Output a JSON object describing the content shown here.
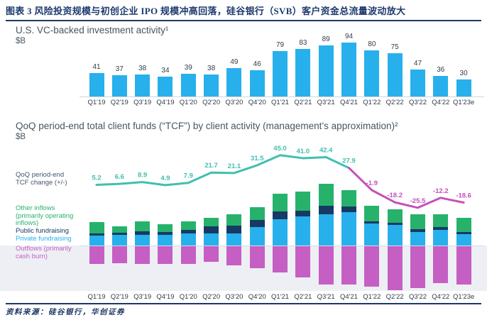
{
  "figure": {
    "title": "图表 3  风险投资规模与初创企业 IPO 规模冲高回落，硅谷银行（SVB）客户资金总流量波动放大",
    "source_note": "资料来源：硅谷银行，华创证券"
  },
  "colors": {
    "accent_navy": "#1f3864",
    "bar_blue": "#27b0ec",
    "seg_green": "#27b26c",
    "seg_navy": "#173a64",
    "seg_blue": "#27b0ec",
    "seg_magenta": "#c55fc3",
    "line_teal": "#40bfb0",
    "line_pink": "#c551bb",
    "band_bg": "#edeff4",
    "label_text": "#323c49"
  },
  "top_chart": {
    "title": "U.S. VC-backed investment activity¹",
    "unit": "$B"
  },
  "bottom_chart": {
    "title": "QoQ period-end total client funds (“TCF”) by client activity (management’s approximation)²",
    "unit": "$B",
    "annotations": {
      "line_label_lines": [
        "QoQ period-end",
        "TCF change (+/-)"
      ],
      "legend": [
        {
          "lines": [
            "Other inflows",
            "(primarily operating",
            "inflows)"
          ],
          "color_key": "seg_green"
        },
        {
          "lines": [
            "Public fundraising"
          ],
          "color_key": "seg_navy"
        },
        {
          "lines": [
            "Private fundraising"
          ],
          "color_key": "seg_blue"
        },
        {
          "lines": [
            "Outflows (primarily",
            "cash burn)"
          ],
          "color_key": "seg_magenta"
        }
      ]
    }
  },
  "chart_data": [
    {
      "type": "bar",
      "title": "U.S. VC-backed investment activity",
      "ylabel": "$B",
      "categories": [
        "Q1'19",
        "Q2'19",
        "Q3'19",
        "Q4'19",
        "Q1'20",
        "Q2'20",
        "Q3'20",
        "Q4'20",
        "Q1'21",
        "Q2'21",
        "Q3'21",
        "Q4'21",
        "Q1'22",
        "Q2'22",
        "Q3'22",
        "Q4'22",
        "Q1'23e"
      ],
      "values": [
        41,
        37,
        38,
        34,
        39,
        38,
        49,
        46,
        79,
        83,
        89,
        94,
        80,
        75,
        47,
        36,
        30
      ],
      "ylim": [
        0,
        100
      ],
      "grid": false,
      "bar_color_key": "bar_blue"
    },
    {
      "type": "bar",
      "subtype": "stacked-bar-with-line",
      "title": "QoQ period-end total client funds (“TCF”) by client activity (management’s approximation)",
      "ylabel": "$B",
      "categories": [
        "Q1'19",
        "Q2'19",
        "Q3'19",
        "Q4'19",
        "Q1'20",
        "Q2'20",
        "Q3'20",
        "Q4'20",
        "Q1'21",
        "Q2'21",
        "Q3'21",
        "Q4'21",
        "Q1'22",
        "Q2'22",
        "Q3'22",
        "Q4'22",
        "Q1'23e"
      ],
      "values_estimated": true,
      "series": [
        {
          "name": "Other inflows (primarily operating inflows)",
          "color_key": "seg_green",
          "values": [
            16,
            9,
            14,
            11,
            12,
            12,
            16,
            18,
            25,
            27,
            31,
            23,
            22,
            19,
            21,
            18,
            20
          ]
        },
        {
          "name": "Public fundraising",
          "color_key": "seg_navy",
          "values": [
            3,
            3,
            5,
            4,
            5,
            10,
            11,
            10,
            11,
            8,
            12,
            8,
            3,
            3,
            4,
            4,
            3
          ]
        },
        {
          "name": "Private fundraising",
          "color_key": "seg_blue",
          "values": [
            14,
            15,
            15,
            15,
            17,
            17,
            17,
            26,
            37,
            41,
            44,
            47,
            31,
            29,
            19,
            22,
            16
          ]
        },
        {
          "name": "Outflows (primarily cash burn)",
          "color_key": "seg_magenta",
          "values": [
            -25,
            -24,
            -25,
            -25,
            -25,
            -22,
            -27,
            -31,
            -37,
            -44,
            -54,
            -54,
            -57,
            -62,
            -59,
            -52,
            -54
          ]
        }
      ],
      "line": {
        "name": "QoQ period-end TCF change (+/-)",
        "values": [
          5.2,
          6.6,
          8.9,
          4.9,
          7.9,
          21.7,
          21.1,
          31.5,
          45.0,
          41.0,
          42.4,
          27.9,
          -1.9,
          -18.2,
          -25.5,
          -12.2,
          -18.6
        ],
        "color_positive_key": "line_teal",
        "color_negative_key": "line_pink",
        "color_switch_index": 11
      },
      "legend_position": "left",
      "grid": false
    }
  ]
}
